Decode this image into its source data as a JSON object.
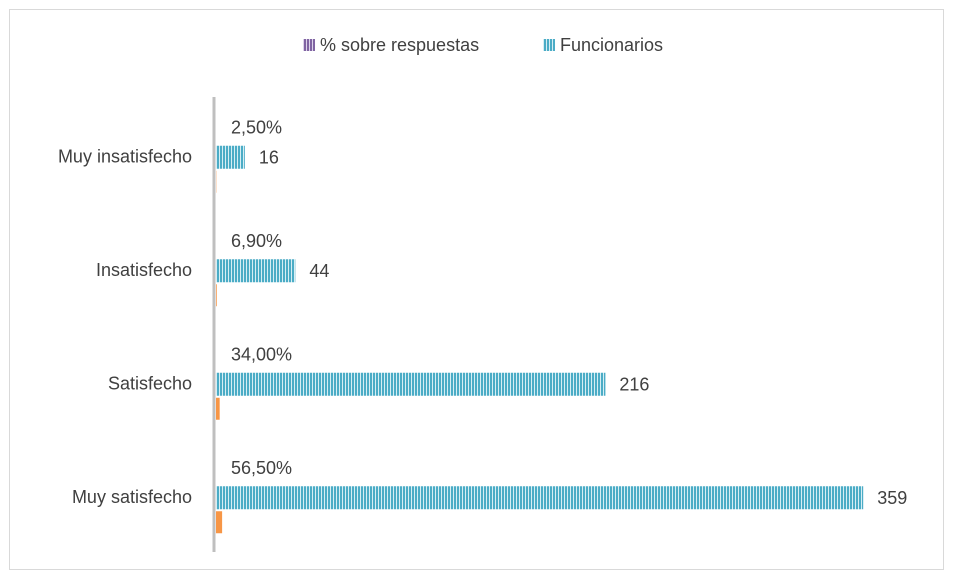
{
  "chart_data": {
    "type": "bar",
    "orientation": "horizontal",
    "categories": [
      "Muy insatisfecho",
      "Insatisfecho",
      "Satisfecho",
      "Muy satisfecho"
    ],
    "series": [
      {
        "name": "Funcionarios",
        "color": "#4bacc6",
        "values": [
          16,
          44,
          216,
          359
        ]
      },
      {
        "name": "% sobre respuestas",
        "color": "#8064a2",
        "bar_color": "#f79646",
        "axis": "x2",
        "values": [
          2.5,
          6.9,
          34,
          56.5
        ],
        "value_labels": [
          "2,50%",
          "6,90%",
          "34,00%",
          "56,50%"
        ]
      }
    ],
    "xlim": [
      0,
      360
    ],
    "x2lim": [
      0,
      6000
    ],
    "legend": "top"
  }
}
